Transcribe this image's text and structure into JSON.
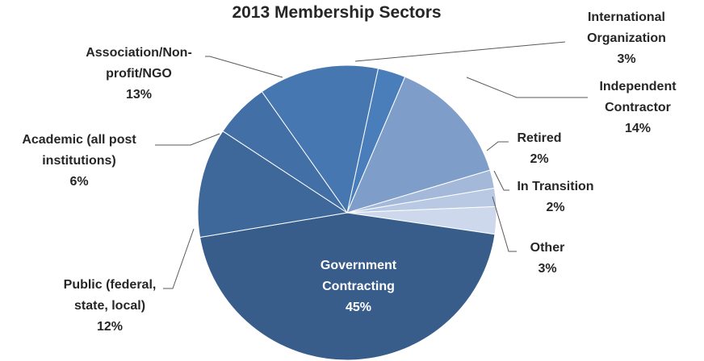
{
  "chart_data": {
    "type": "pie",
    "title": "2013 Membership Sectors",
    "slices": [
      {
        "name": "International Organization",
        "label_lines": [
          "International",
          "Organization"
        ],
        "pct_label": "3%",
        "value": 3,
        "color": "#4a7ebb"
      },
      {
        "name": "Independent Contractor",
        "label_lines": [
          "Independent",
          "Contractor"
        ],
        "pct_label": "14%",
        "value": 14,
        "color": "#7f9dc9"
      },
      {
        "name": "Retired",
        "label_lines": [
          "Retired"
        ],
        "pct_label": "2%",
        "value": 2,
        "color": "#a4b8d9"
      },
      {
        "name": "In Transition",
        "label_lines": [
          "In Transition"
        ],
        "pct_label": "2%",
        "value": 2,
        "color": "#b9c9e3"
      },
      {
        "name": "Other",
        "label_lines": [
          "Other"
        ],
        "pct_label": "3%",
        "value": 3,
        "color": "#cdd8ec"
      },
      {
        "name": "Government Contracting",
        "label_lines": [
          "Government",
          "Contracting"
        ],
        "pct_label": "45%",
        "value": 45,
        "color": "#385d8a"
      },
      {
        "name": "Public (federal, state, local)",
        "label_lines": [
          "Public (federal,",
          "state, local)"
        ],
        "pct_label": "12%",
        "value": 12,
        "color": "#3e689a"
      },
      {
        "name": "Academic (all post institutions)",
        "label_lines": [
          "Academic (all post",
          "institutions)"
        ],
        "pct_label": "6%",
        "value": 6,
        "color": "#4270a6"
      },
      {
        "name": "Association/Non-profit/NGO",
        "label_lines": [
          "Association/Non-",
          "profit/NGO"
        ],
        "pct_label": "13%",
        "value": 13,
        "color": "#4677b1"
      }
    ]
  }
}
